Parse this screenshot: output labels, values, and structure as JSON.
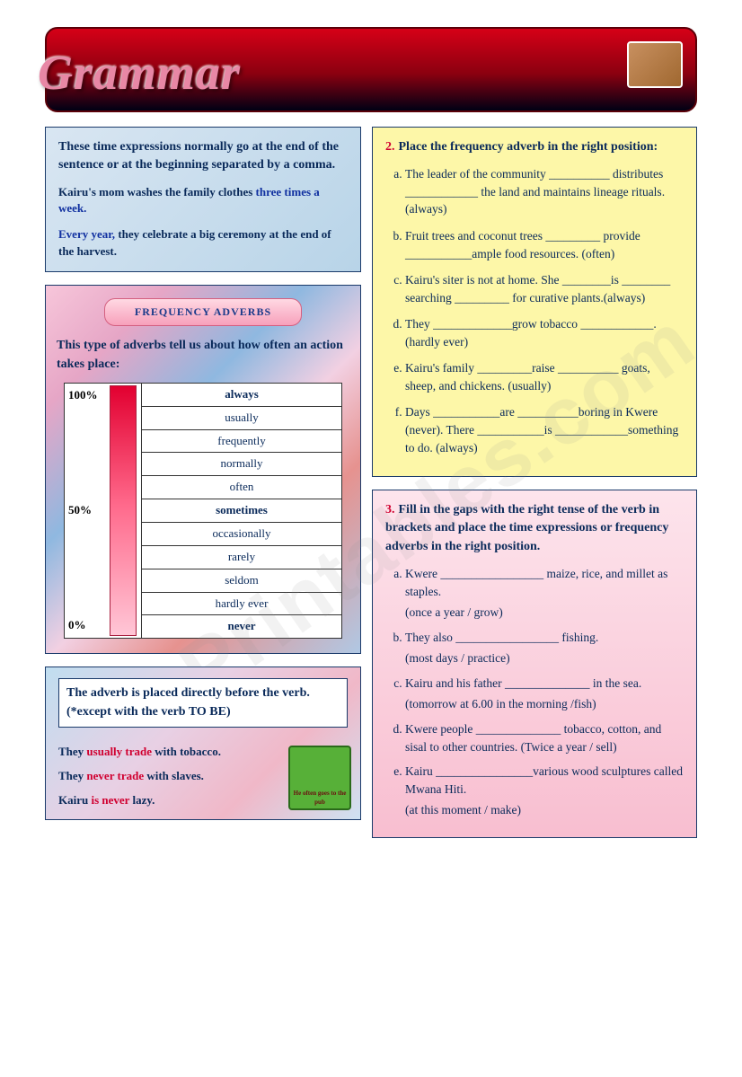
{
  "header": {
    "title": "Grammar"
  },
  "intro": {
    "heading": "These time expressions normally go at the end of the sentence or at the beginning separated by a comma.",
    "example1_pre": "Kairu's mom washes the family clothes ",
    "example1_hl": "three times a week.",
    "example2_hl": "Every year,",
    "example2_post": " they celebrate a big ceremony at the end of the harvest."
  },
  "adverbs": {
    "title": "FREQUENCY ADVERBS",
    "desc": "This type of adverbs tell us about how often an action takes place:",
    "scale_pct": [
      "100%",
      "50%",
      "0%"
    ],
    "words": [
      {
        "label": "always",
        "style": "fw-red"
      },
      {
        "label": "usually",
        "style": ""
      },
      {
        "label": "frequently",
        "style": ""
      },
      {
        "label": "normally",
        "style": ""
      },
      {
        "label": "often",
        "style": ""
      },
      {
        "label": "sometimes",
        "style": "fw-purple"
      },
      {
        "label": "occasionally",
        "style": ""
      },
      {
        "label": "rarely",
        "style": ""
      },
      {
        "label": "seldom",
        "style": ""
      },
      {
        "label": "hardly ever",
        "style": ""
      },
      {
        "label": "never",
        "style": "fw-purple"
      }
    ],
    "colors": {
      "bar_gradient": [
        "#e20030",
        "#ff6a8c",
        "#ffc6d6"
      ]
    }
  },
  "placement": {
    "heading": "The adverb is placed directly before the verb. (*except with the verb TO BE)",
    "lines": [
      {
        "pre": "They ",
        "adv": "usually",
        "mid": " ",
        "verb": "trade",
        "post": " with tobacco."
      },
      {
        "pre": "They ",
        "adv": "never",
        "mid": " ",
        "verb": "trade",
        "post": " with slaves."
      },
      {
        "pre": "Kairu ",
        "adv": "is",
        "mid": " ",
        "verb": "never",
        "post": " lazy."
      }
    ],
    "cartoon_caption": "He often goes to the pub"
  },
  "ex2": {
    "num": "2.",
    "heading": "Place the frequency adverb in the right position:",
    "items": [
      "The leader of the community __________ distributes ____________ the land and maintains lineage rituals. (always)",
      "Fruit trees and coconut trees _________ provide ___________ample food resources. (often)",
      "Kairu's siter is not at home. She ________is ________ searching _________ for curative plants.(always)",
      "They _____________grow tobacco ____________.(hardly ever)",
      "Kairu's family _________raise __________ goats, sheep, and chickens. (usually)",
      "Days ___________are __________boring in Kwere (never). There ___________is ____________something to do. (always)"
    ]
  },
  "ex3": {
    "num": "3.",
    "heading": "Fill in the gaps with the right tense of the verb in brackets and place the time expressions or frequency adverbs in the right position.",
    "items": [
      {
        "text": "Kwere _________________ maize, rice, and millet as staples.",
        "hint": "(once a year / grow)"
      },
      {
        "text": "They also _________________ fishing.",
        "hint": "(most days / practice)"
      },
      {
        "text": "Kairu and his father ______________ in the sea.",
        "hint": "(tomorrow at 6.00 in the morning /fish)"
      },
      {
        "text": "Kwere people ______________ tobacco, cotton, and sisal to other countries. (Twice a year / sell)",
        "hint": ""
      },
      {
        "text": "Kairu ________________various wood sculptures called Mwana Hiti.",
        "hint": "(at this moment / make)"
      }
    ]
  },
  "watermark": "ESLPrintables.com"
}
